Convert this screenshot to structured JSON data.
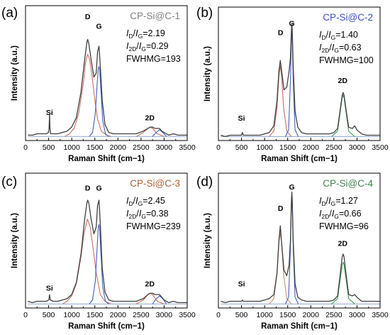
{
  "chart_data": [
    {
      "panel_label": "(a)",
      "type": "line",
      "title": "CP-Si@C-1",
      "title_color": "#808080",
      "xlabel": "Raman Shift (cm−1)",
      "ylabel": "Intensity (a.u.)",
      "xlim": [
        0,
        3500
      ],
      "xticks": [
        0,
        500,
        1000,
        1500,
        2000,
        2500,
        3000,
        3500
      ],
      "ratios": [
        {
          "sym": "D",
          "den": "G",
          "val": "=2.19"
        },
        {
          "sym": "2D",
          "den": "G",
          "val": "=0.29"
        }
      ],
      "fwhm_text": "FWHMG=193",
      "peak_labels": [
        {
          "text": "Si",
          "x": 520,
          "y": 0.19
        },
        {
          "text": "D",
          "x": 1345,
          "y": 0.9
        },
        {
          "text": "G",
          "x": 1590,
          "y": 0.83
        },
        {
          "text": "2D",
          "x": 2690,
          "y": 0.15
        }
      ],
      "series": [
        {
          "role": "baseline",
          "x": [
            50,
            3500
          ],
          "y": [
            0.03,
            0.03
          ],
          "color": "#9ab0d0"
        },
        {
          "role": "fit-D",
          "x": [
            850,
            950,
            1050,
            1150,
            1250,
            1300,
            1345,
            1390,
            1440,
            1500,
            1560,
            1640,
            1750,
            1850
          ],
          "y": [
            0.03,
            0.05,
            0.09,
            0.2,
            0.42,
            0.58,
            0.64,
            0.6,
            0.48,
            0.3,
            0.16,
            0.07,
            0.04,
            0.03
          ],
          "color": "#c87060"
        },
        {
          "role": "fit-G",
          "x": [
            1380,
            1450,
            1510,
            1550,
            1575,
            1590,
            1605,
            1630,
            1670,
            1730,
            1800
          ],
          "y": [
            0.03,
            0.06,
            0.2,
            0.42,
            0.53,
            0.55,
            0.52,
            0.38,
            0.15,
            0.05,
            0.03
          ],
          "color": "#4060c0"
        },
        {
          "role": "fit-2D",
          "x": [
            2400,
            2550,
            2650,
            2700,
            2750,
            2850,
            3000
          ],
          "y": [
            0.03,
            0.06,
            0.09,
            0.1,
            0.09,
            0.05,
            0.03
          ],
          "color": "#c87060"
        },
        {
          "role": "fit-2D-2",
          "x": [
            2750,
            2830,
            2900,
            2970,
            3050
          ],
          "y": [
            0.03,
            0.06,
            0.08,
            0.06,
            0.03
          ],
          "color": "#4060c0"
        },
        {
          "role": "spectrum",
          "x": [
            50,
            150,
            250,
            350,
            450,
            500,
            510,
            520,
            530,
            545,
            600,
            700,
            800,
            900,
            1000,
            1100,
            1200,
            1280,
            1330,
            1345,
            1370,
            1420,
            1480,
            1530,
            1560,
            1590,
            1620,
            1660,
            1720,
            1800,
            1900,
            2000,
            2200,
            2400,
            2550,
            2650,
            2700,
            2750,
            2800,
            2850,
            2900,
            2950,
            3000,
            3100,
            3200,
            3300,
            3400,
            3500
          ],
          "y": [
            0.04,
            0.04,
            0.05,
            0.05,
            0.05,
            0.06,
            0.09,
            0.19,
            0.09,
            0.05,
            0.05,
            0.05,
            0.06,
            0.07,
            0.1,
            0.17,
            0.36,
            0.6,
            0.73,
            0.75,
            0.72,
            0.6,
            0.47,
            0.5,
            0.66,
            0.7,
            0.55,
            0.3,
            0.12,
            0.06,
            0.05,
            0.05,
            0.05,
            0.05,
            0.07,
            0.09,
            0.1,
            0.1,
            0.09,
            0.09,
            0.09,
            0.07,
            0.06,
            0.04,
            0.05,
            0.04,
            0.04,
            0.04
          ],
          "color": "#404040"
        }
      ]
    },
    {
      "panel_label": "(b)",
      "type": "line",
      "title": "CP-Si@C-2",
      "title_color": "#4050c0",
      "xlabel": "Raman Shift (cm−1)",
      "ylabel": "Intensity (a.u.)",
      "xlim": [
        0,
        3500
      ],
      "xticks": [
        0,
        500,
        1000,
        1500,
        2000,
        2500,
        3000,
        3500
      ],
      "ratios": [
        {
          "sym": "D",
          "den": "G",
          "val": "=1.40"
        },
        {
          "sym": "2D",
          "den": "G",
          "val": "=0.63"
        }
      ],
      "fwhm_text": "FWHMG=100",
      "peak_labels": [
        {
          "text": "Si",
          "x": 500,
          "y": 0.15
        },
        {
          "text": "D",
          "x": 1345,
          "y": 0.79
        },
        {
          "text": "G",
          "x": 1590,
          "y": 0.86
        },
        {
          "text": "2D",
          "x": 2690,
          "y": 0.43
        }
      ],
      "series": [
        {
          "role": "baseline",
          "x": [
            50,
            3500
          ],
          "y": [
            0.03,
            0.03
          ],
          "color": "#9ab0d0"
        },
        {
          "role": "fit-D",
          "x": [
            1100,
            1200,
            1270,
            1310,
            1340,
            1370,
            1410,
            1480,
            1580
          ],
          "y": [
            0.03,
            0.07,
            0.25,
            0.48,
            0.56,
            0.48,
            0.25,
            0.07,
            0.03
          ],
          "color": "#c87060"
        },
        {
          "role": "fit-G",
          "x": [
            1450,
            1520,
            1560,
            1580,
            1590,
            1600,
            1620,
            1660,
            1730
          ],
          "y": [
            0.03,
            0.08,
            0.45,
            0.75,
            0.81,
            0.75,
            0.45,
            0.08,
            0.03
          ],
          "color": "#4060c0"
        },
        {
          "role": "fit-2D",
          "x": [
            2450,
            2580,
            2640,
            2680,
            2700,
            2720,
            2760,
            2820,
            2950
          ],
          "y": [
            0.03,
            0.07,
            0.22,
            0.32,
            0.34,
            0.32,
            0.22,
            0.07,
            0.03
          ],
          "color": "#40a060"
        },
        {
          "role": "spectrum",
          "x": [
            50,
            150,
            250,
            350,
            450,
            500,
            520,
            540,
            600,
            700,
            800,
            900,
            1000,
            1100,
            1200,
            1270,
            1310,
            1340,
            1370,
            1420,
            1480,
            1530,
            1560,
            1580,
            1590,
            1600,
            1620,
            1660,
            1720,
            1800,
            1900,
            2000,
            2200,
            2400,
            2500,
            2580,
            2640,
            2680,
            2700,
            2720,
            2760,
            2820,
            2900,
            2950,
            3000,
            3100,
            3200,
            3300,
            3400,
            3500
          ],
          "y": [
            0.04,
            0.03,
            0.04,
            0.04,
            0.04,
            0.04,
            0.06,
            0.04,
            0.04,
            0.04,
            0.04,
            0.04,
            0.05,
            0.06,
            0.11,
            0.3,
            0.52,
            0.6,
            0.52,
            0.38,
            0.4,
            0.52,
            0.62,
            0.82,
            0.88,
            0.82,
            0.55,
            0.22,
            0.1,
            0.06,
            0.05,
            0.05,
            0.05,
            0.05,
            0.06,
            0.09,
            0.24,
            0.34,
            0.36,
            0.34,
            0.24,
            0.1,
            0.09,
            0.11,
            0.08,
            0.05,
            0.04,
            0.04,
            0.04,
            0.04
          ],
          "color": "#404040"
        }
      ]
    },
    {
      "panel_label": "(c)",
      "type": "line",
      "title": "CP-Si@C-3",
      "title_color": "#b06030",
      "xlabel": "Raman Shift (cm−1)",
      "ylabel": "Intensity (a.u.)",
      "xlim": [
        0,
        3500
      ],
      "xticks": [
        0,
        500,
        1000,
        1500,
        2000,
        2500,
        3000,
        3500
      ],
      "ratios": [
        {
          "sym": "D",
          "den": "G",
          "val": "=2.45"
        },
        {
          "sym": "2D",
          "den": "G",
          "val": "=0.38"
        }
      ],
      "fwhm_text": "FWHMG=239",
      "peak_labels": [
        {
          "text": "Si",
          "x": 520,
          "y": 0.13
        },
        {
          "text": "D",
          "x": 1345,
          "y": 0.87
        },
        {
          "text": "G",
          "x": 1590,
          "y": 0.87
        },
        {
          "text": "2D",
          "x": 2690,
          "y": 0.16
        }
      ],
      "series": [
        {
          "role": "baseline",
          "x": [
            50,
            3500
          ],
          "y": [
            0.03,
            0.03
          ],
          "color": "#9ab0d0"
        },
        {
          "role": "fit-D",
          "x": [
            800,
            900,
            1000,
            1100,
            1200,
            1270,
            1340,
            1400,
            1460,
            1530,
            1620,
            1720,
            1850
          ],
          "y": [
            0.03,
            0.05,
            0.09,
            0.18,
            0.38,
            0.56,
            0.66,
            0.6,
            0.45,
            0.26,
            0.1,
            0.05,
            0.03
          ],
          "color": "#c87060"
        },
        {
          "role": "fit-G",
          "x": [
            1380,
            1450,
            1510,
            1550,
            1575,
            1590,
            1605,
            1630,
            1670,
            1730,
            1800
          ],
          "y": [
            0.03,
            0.06,
            0.2,
            0.45,
            0.6,
            0.62,
            0.58,
            0.42,
            0.16,
            0.05,
            0.03
          ],
          "color": "#4060c0"
        },
        {
          "role": "fit-2D",
          "x": [
            2400,
            2550,
            2650,
            2700,
            2750,
            2850,
            3000
          ],
          "y": [
            0.03,
            0.06,
            0.1,
            0.11,
            0.1,
            0.05,
            0.03
          ],
          "color": "#c87060"
        },
        {
          "role": "fit-2D-2",
          "x": [
            2750,
            2830,
            2900,
            2970,
            3050
          ],
          "y": [
            0.03,
            0.07,
            0.09,
            0.07,
            0.03
          ],
          "color": "#4060c0"
        },
        {
          "role": "spectrum",
          "x": [
            50,
            150,
            250,
            350,
            450,
            505,
            520,
            535,
            600,
            700,
            800,
            900,
            1000,
            1100,
            1200,
            1280,
            1330,
            1345,
            1370,
            1420,
            1480,
            1530,
            1560,
            1590,
            1620,
            1660,
            1720,
            1800,
            1900,
            2000,
            2200,
            2400,
            2550,
            2650,
            2700,
            2750,
            2800,
            2850,
            2900,
            2950,
            3000,
            3100,
            3200,
            3300,
            3400,
            3500
          ],
          "y": [
            0.05,
            0.04,
            0.05,
            0.05,
            0.05,
            0.06,
            0.1,
            0.06,
            0.05,
            0.05,
            0.06,
            0.07,
            0.1,
            0.19,
            0.4,
            0.66,
            0.78,
            0.8,
            0.78,
            0.66,
            0.55,
            0.6,
            0.76,
            0.8,
            0.62,
            0.3,
            0.12,
            0.06,
            0.05,
            0.05,
            0.05,
            0.05,
            0.07,
            0.1,
            0.11,
            0.11,
            0.1,
            0.1,
            0.1,
            0.08,
            0.06,
            0.04,
            0.05,
            0.04,
            0.04,
            0.04
          ],
          "color": "#404040"
        }
      ]
    },
    {
      "panel_label": "(d)",
      "type": "line",
      "title": "CP-Si@C-4",
      "title_color": "#408050",
      "xlabel": "Raman Shift (cm−1)",
      "ylabel": "Intensity (a.u.)",
      "xlim": [
        0,
        3500
      ],
      "xticks": [
        0,
        500,
        1000,
        1500,
        2000,
        2500,
        3000,
        3500
      ],
      "ratios": [
        {
          "sym": "D",
          "den": "G",
          "val": "=1.27"
        },
        {
          "sym": "2D",
          "den": "G",
          "val": "=0.66"
        }
      ],
      "fwhm_text": "FWHMG=96",
      "peak_labels": [
        {
          "text": "Si",
          "x": 500,
          "y": 0.16
        },
        {
          "text": "D",
          "x": 1345,
          "y": 0.72
        },
        {
          "text": "G",
          "x": 1590,
          "y": 0.88
        },
        {
          "text": "2D",
          "x": 2690,
          "y": 0.46
        }
      ],
      "series": [
        {
          "role": "baseline",
          "x": [
            50,
            3500
          ],
          "y": [
            0.03,
            0.03
          ],
          "color": "#9ab0d0"
        },
        {
          "role": "fit-D",
          "x": [
            1100,
            1200,
            1270,
            1310,
            1340,
            1370,
            1410,
            1480,
            1580
          ],
          "y": [
            0.03,
            0.07,
            0.25,
            0.48,
            0.56,
            0.48,
            0.25,
            0.07,
            0.03
          ],
          "color": "#c89070"
        },
        {
          "role": "fit-G",
          "x": [
            1450,
            1520,
            1560,
            1580,
            1590,
            1600,
            1620,
            1660,
            1730
          ],
          "y": [
            0.03,
            0.08,
            0.45,
            0.75,
            0.81,
            0.75,
            0.45,
            0.08,
            0.03
          ],
          "color": "#4060c0"
        },
        {
          "role": "fit-2D",
          "x": [
            2450,
            2580,
            2640,
            2680,
            2700,
            2720,
            2760,
            2820,
            2950
          ],
          "y": [
            0.03,
            0.07,
            0.22,
            0.32,
            0.34,
            0.32,
            0.22,
            0.07,
            0.03
          ],
          "color": "#40a060"
        },
        {
          "role": "spectrum",
          "x": [
            50,
            150,
            250,
            350,
            450,
            500,
            520,
            540,
            600,
            700,
            800,
            900,
            1000,
            1100,
            1200,
            1270,
            1310,
            1340,
            1370,
            1420,
            1480,
            1530,
            1560,
            1580,
            1590,
            1600,
            1620,
            1660,
            1720,
            1800,
            1900,
            2000,
            2200,
            2400,
            2500,
            2580,
            2640,
            2680,
            2700,
            2720,
            2760,
            2820,
            2900,
            2950,
            3000,
            3100,
            3200,
            3300,
            3400,
            3500
          ],
          "y": [
            0.05,
            0.04,
            0.05,
            0.05,
            0.05,
            0.05,
            0.06,
            0.05,
            0.05,
            0.05,
            0.05,
            0.05,
            0.06,
            0.07,
            0.1,
            0.26,
            0.5,
            0.61,
            0.48,
            0.28,
            0.24,
            0.32,
            0.5,
            0.79,
            0.86,
            0.79,
            0.5,
            0.18,
            0.08,
            0.06,
            0.05,
            0.05,
            0.05,
            0.05,
            0.06,
            0.09,
            0.26,
            0.38,
            0.4,
            0.38,
            0.26,
            0.1,
            0.09,
            0.1,
            0.08,
            0.05,
            0.05,
            0.05,
            0.05,
            0.05
          ],
          "color": "#404040"
        }
      ]
    }
  ]
}
